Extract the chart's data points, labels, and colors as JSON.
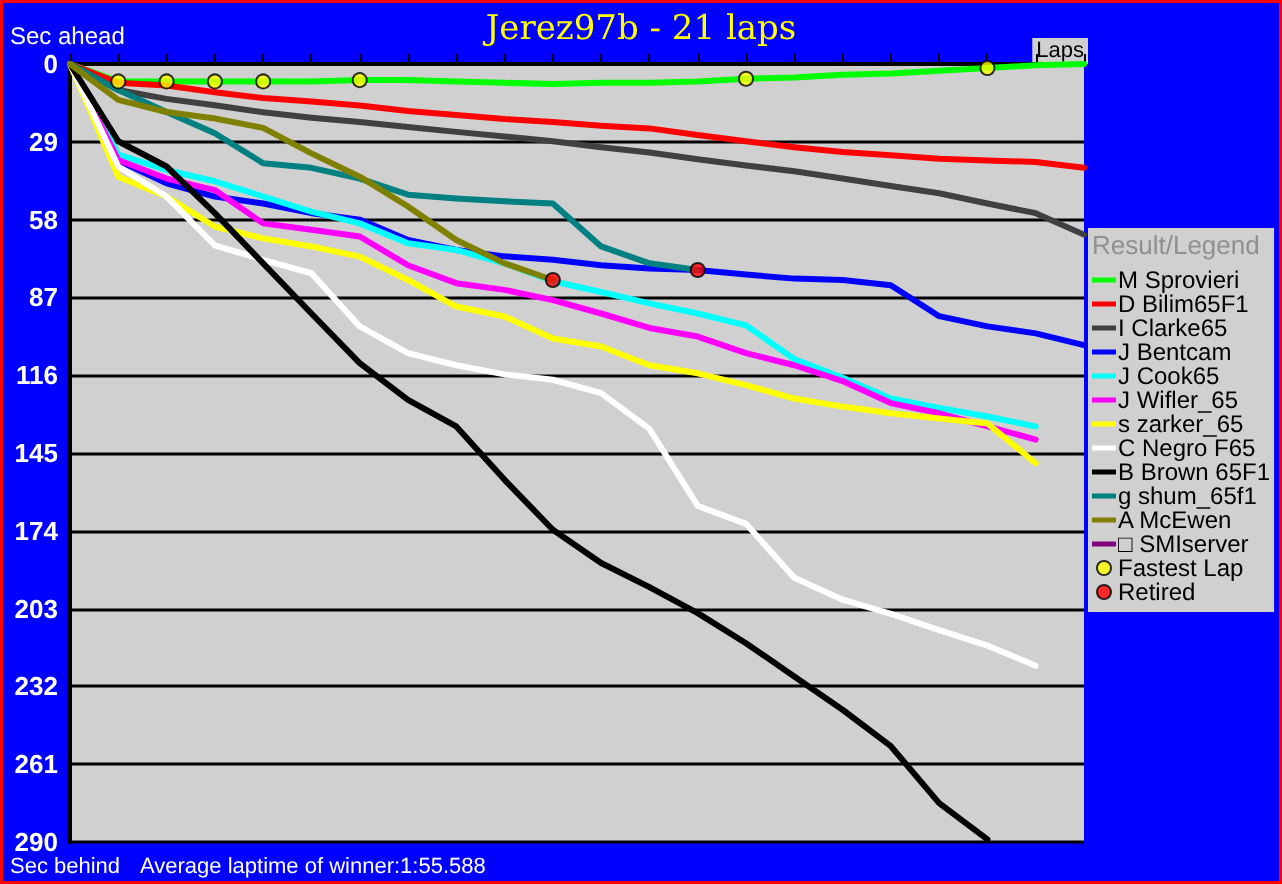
{
  "chart_data": {
    "type": "line",
    "title": "Jerez97b - 21 laps",
    "xlabel": "Laps",
    "ylabel": "Sec ahead",
    "legend_title": "Result/Legend",
    "annotations": [
      "Sec behind",
      "Average laptime of winner:1:55.588"
    ],
    "categories": [
      null,
      null,
      null,
      null,
      null,
      null,
      null,
      null,
      null,
      null,
      null,
      null,
      null,
      null,
      null,
      null,
      null,
      null,
      null,
      null,
      null,
      null
    ],
    "ylim": [
      290,
      0
    ],
    "yticks": [
      0,
      29,
      58,
      87,
      116,
      145,
      174,
      203,
      232,
      261,
      290
    ],
    "tick_labels": "y",
    "grid": "y",
    "legend": "right",
    "marker": "none",
    "line_style": "solid",
    "series": [
      {
        "name": "M Sprovieri",
        "color": "#00ff00",
        "values": [
          0,
          6.5,
          6.5,
          6.5,
          6.5,
          6.5,
          6,
          6,
          6.5,
          7,
          7.5,
          7,
          7,
          6.5,
          5.5,
          5,
          4,
          3.5,
          2.5,
          1.5,
          0.5,
          0
        ]
      },
      {
        "name": "D Bilim65F1",
        "color": "#ff0000",
        "values": [
          0,
          7,
          8,
          10.5,
          12.7,
          14,
          15.5,
          17.5,
          19,
          20.5,
          21.6,
          23,
          24,
          26.5,
          28.8,
          31,
          32.8,
          34,
          35.3,
          36,
          36.5,
          38.7
        ]
      },
      {
        "name": "I Clarke65",
        "color": "#404040",
        "values": [
          0,
          9.7,
          13,
          15.4,
          18,
          20,
          21.6,
          23.5,
          25.3,
          27,
          28.8,
          31,
          33,
          35.5,
          37.8,
          40,
          42.7,
          45.5,
          48.2,
          52,
          55.6,
          63.6
        ]
      },
      {
        "name": "J Bentcam",
        "color": "#0000ff",
        "values": [
          0,
          36,
          44.5,
          49.4,
          52,
          55.6,
          58,
          65.6,
          69.3,
          71.7,
          73,
          75,
          76.2,
          76.8,
          78.5,
          80,
          80.5,
          82.5,
          94,
          97.8,
          100.4,
          104.8
        ]
      },
      {
        "name": "J Cook65",
        "color": "#00ffff",
        "values": [
          0,
          33.8,
          39.5,
          43.7,
          49.4,
          55,
          59.4,
          66.8,
          69.3,
          74.3,
          81,
          85,
          89.2,
          93,
          97.4,
          110,
          117,
          124.7,
          128.2,
          131.4,
          135.1,
          null
        ]
      },
      {
        "name": "J Wifler_65",
        "color": "#ff00ff",
        "values": [
          0,
          35.8,
          42.7,
          47,
          59.4,
          61.8,
          64.3,
          75,
          81.7,
          84.2,
          88,
          93,
          98.4,
          101.6,
          107.8,
          112.3,
          118.2,
          126.4,
          130.2,
          135.1,
          140,
          null
        ]
      },
      {
        "name": "s zarker_65",
        "color": "#ffff00",
        "values": [
          0,
          42,
          49.4,
          60.6,
          65,
          68,
          71.8,
          80.5,
          90.4,
          94.1,
          102.3,
          105.3,
          112.3,
          115.3,
          119.7,
          124.7,
          127.7,
          130.2,
          132.1,
          134,
          148.8,
          null
        ]
      },
      {
        "name": "C Negro F65",
        "color": "#ffffff",
        "values": [
          0,
          38.2,
          49.4,
          67.6,
          73,
          78,
          97.8,
          107.8,
          112.3,
          115.7,
          117.7,
          122.7,
          136,
          164.7,
          171.4,
          191.5,
          199.7,
          205,
          211,
          216.8,
          224.3,
          null
        ]
      },
      {
        "name": "B Brown 65F1",
        "color": "#000000",
        "values": [
          0,
          28.8,
          38.2,
          55.6,
          74.3,
          93,
          111.5,
          125.2,
          135.1,
          155,
          173.6,
          186,
          195,
          204.7,
          215.9,
          228.3,
          240.7,
          254.3,
          275.5,
          289,
          null,
          null
        ]
      },
      {
        "name": "g shum_65f1",
        "color": "#008080",
        "values": [
          0,
          9.7,
          17.9,
          25.8,
          37,
          38.7,
          42.7,
          48.7,
          50.1,
          51.2,
          52,
          68,
          74.3,
          76.8,
          null,
          null,
          null,
          null,
          null,
          null,
          null,
          null
        ]
      },
      {
        "name": "A McEwen",
        "color": "#808000",
        "values": [
          0,
          13.4,
          17.9,
          20.3,
          23.8,
          33.3,
          42,
          53.1,
          65.6,
          74.3,
          80.5,
          null,
          null,
          null,
          null,
          null,
          null,
          null,
          null,
          null,
          null,
          null
        ]
      },
      {
        "name": "□ SMIserver",
        "color": "#800080",
        "values": [
          null,
          null,
          null,
          null,
          null,
          null,
          null,
          null,
          null,
          null,
          null,
          null,
          null,
          null,
          null,
          null,
          null,
          null,
          null,
          null,
          null,
          null
        ]
      },
      {
        "name": "Fastest Lap",
        "type": "scatter",
        "marker": "circle",
        "color": "#ffff00",
        "values": [
          null,
          6.5,
          6.5,
          6.5,
          6.5,
          null,
          6,
          null,
          null,
          null,
          null,
          null,
          null,
          null,
          5.5,
          null,
          null,
          null,
          null,
          1.5,
          null,
          null
        ]
      },
      {
        "name": "Retired",
        "type": "scatter",
        "marker": "circle",
        "color": "#ff0000",
        "values": [
          null,
          null,
          null,
          null,
          null,
          null,
          null,
          null,
          null,
          null,
          80.5,
          null,
          null,
          76.8,
          null,
          null,
          null,
          null,
          null,
          null,
          null,
          null
        ]
      }
    ]
  }
}
